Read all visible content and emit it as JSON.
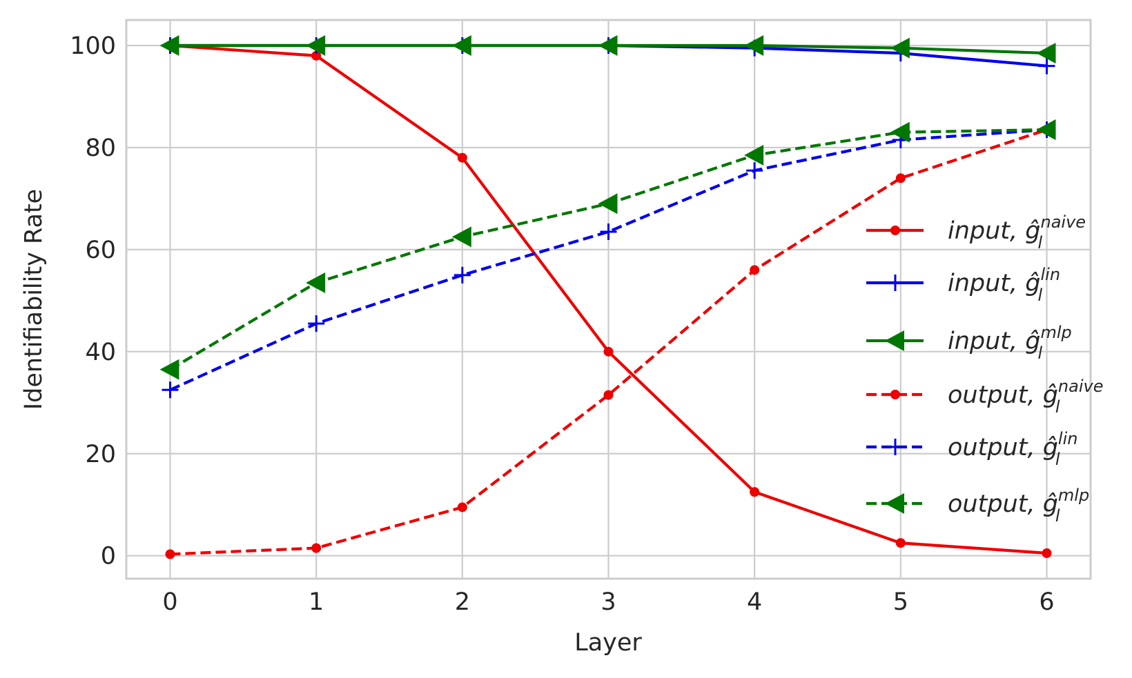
{
  "chart_data": {
    "type": "line",
    "title": "",
    "xlabel": "Layer",
    "ylabel": "Identifiability Rate",
    "x": [
      0,
      1,
      2,
      3,
      4,
      5,
      6
    ],
    "xlim": [
      -0.3,
      6.3
    ],
    "ylim": [
      -4.5,
      105
    ],
    "xticks": [
      "0",
      "1",
      "2",
      "3",
      "4",
      "5",
      "6"
    ],
    "yticks": [
      "0",
      "20",
      "40",
      "60",
      "80",
      "100"
    ],
    "grid": true,
    "legend_position": "right",
    "series": [
      {
        "name": "input, ĝ_l^naive",
        "prefix": "input, ",
        "sup": "naive",
        "color": "#ee0000",
        "dash": "solid",
        "marker": "circle",
        "values": [
          100,
          98,
          78,
          40,
          12.5,
          2.5,
          0.5
        ]
      },
      {
        "name": "input, ĝ_l^lin",
        "prefix": "input, ",
        "sup": "lin",
        "color": "#0000ee",
        "dash": "solid",
        "marker": "plus",
        "values": [
          100,
          100,
          100,
          100,
          99.5,
          98.5,
          96
        ]
      },
      {
        "name": "input, ĝ_l^mlp",
        "prefix": "input, ",
        "sup": "mlp",
        "color": "#007700",
        "dash": "solid",
        "marker": "triangle-left",
        "values": [
          100,
          100,
          100,
          100,
          100,
          99.5,
          98.5
        ]
      },
      {
        "name": "output, ĝ_l^naive",
        "prefix": "output, ",
        "sup": "naive",
        "color": "#ee0000",
        "dash": "dashed",
        "marker": "circle",
        "values": [
          0.3,
          1.5,
          9.5,
          31.5,
          56,
          74,
          83.5
        ]
      },
      {
        "name": "output, ĝ_l^lin",
        "prefix": "output, ",
        "sup": "lin",
        "color": "#0000ee",
        "dash": "dashed",
        "marker": "plus",
        "values": [
          32.5,
          45.5,
          55,
          63.5,
          75.5,
          81.5,
          83.5
        ]
      },
      {
        "name": "output, ĝ_l^mlp",
        "prefix": "output, ",
        "sup": "mlp",
        "color": "#007700",
        "dash": "dashed",
        "marker": "triangle-left",
        "values": [
          36.5,
          53.5,
          62.5,
          69,
          78.5,
          83,
          83.5
        ]
      }
    ]
  }
}
